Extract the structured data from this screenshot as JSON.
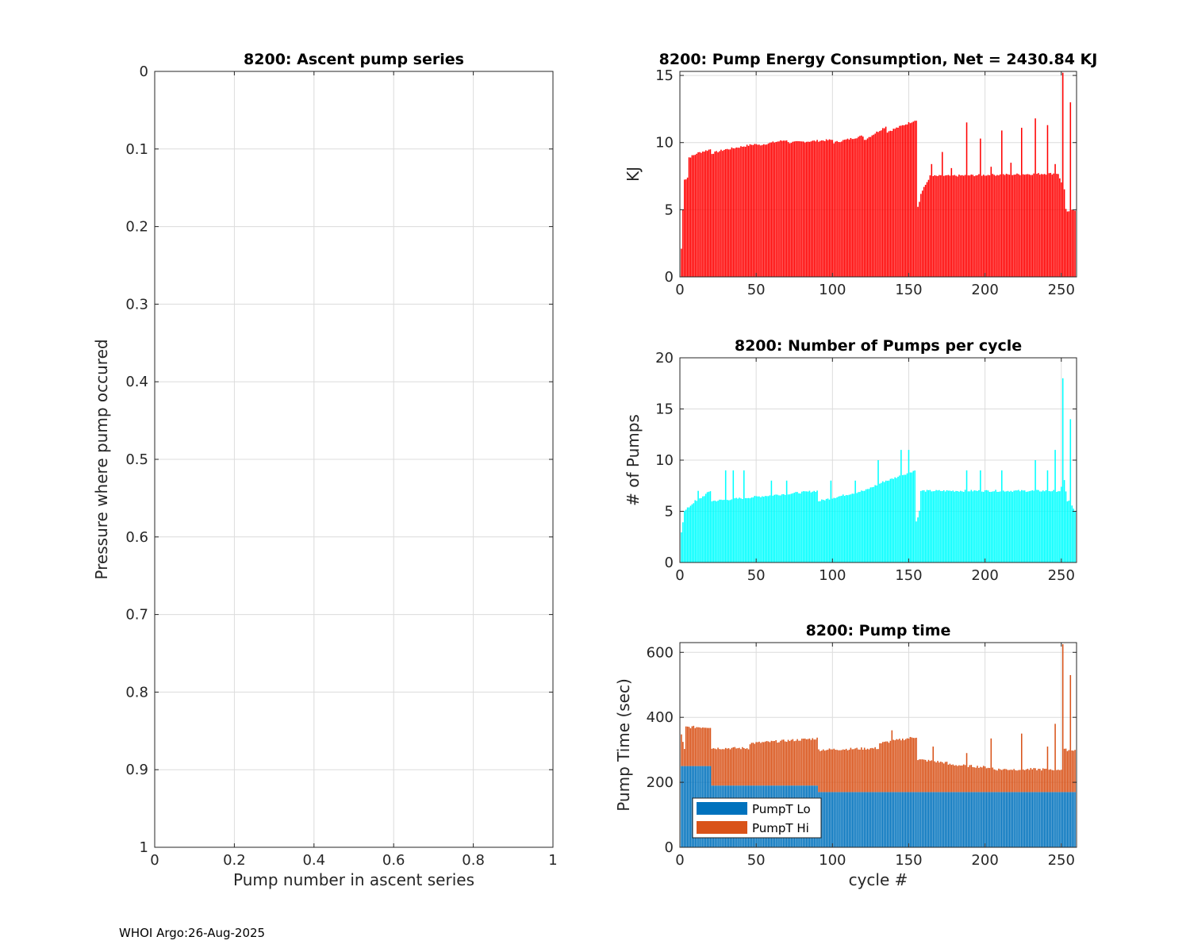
{
  "footer": "WHOI Argo:26-Aug-2025",
  "colors": {
    "energy": "#ff0000",
    "pumps": "#00ffff",
    "lo": "#0072bd",
    "hi": "#d95319",
    "grid": "#dcdcdc",
    "axis": "#262626"
  },
  "chart_data": [
    {
      "type": "scatter",
      "title": "8200: Ascent pump series",
      "xlabel": "Pump number in ascent series",
      "ylabel": "Pressure where pump occured",
      "xlim": [
        0,
        1
      ],
      "ylim": [
        0,
        1
      ],
      "y_reversed": true,
      "xticks": [
        "0",
        "0.2",
        "0.4",
        "0.6",
        "0.8",
        "1"
      ],
      "yticks": [
        "0",
        "0.1",
        "0.2",
        "0.3",
        "0.4",
        "0.5",
        "0.6",
        "0.7",
        "0.8",
        "0.9",
        "1"
      ],
      "points": []
    },
    {
      "type": "bar",
      "title": "8200: Pump Energy Consumption,  Net = 2430.84 KJ",
      "xlabel": "",
      "ylabel": "KJ",
      "xlim": [
        0,
        260
      ],
      "ylim": [
        0,
        15.3
      ],
      "xticks": [
        "0",
        "50",
        "100",
        "150",
        "200",
        "250"
      ],
      "yticks": [
        "0",
        "5",
        "10",
        "15"
      ],
      "segments": [
        {
          "from": 1,
          "to": 1,
          "start": 2.1,
          "end": 2.1
        },
        {
          "from": 2,
          "to": 3,
          "start": 5.0,
          "end": 7.3
        },
        {
          "from": 4,
          "to": 5,
          "start": 7.3,
          "end": 7.4
        },
        {
          "from": 6,
          "to": 10,
          "start": 8.9,
          "end": 9.1
        },
        {
          "from": 11,
          "to": 20,
          "start": 9.2,
          "end": 9.5
        },
        {
          "from": 21,
          "to": 30,
          "start": 9.2,
          "end": 9.5
        },
        {
          "from": 31,
          "to": 50,
          "start": 9.5,
          "end": 9.9
        },
        {
          "from": 51,
          "to": 70,
          "start": 9.8,
          "end": 10.2
        },
        {
          "from": 71,
          "to": 100,
          "start": 10.0,
          "end": 10.2
        },
        {
          "from": 101,
          "to": 120,
          "start": 10.0,
          "end": 10.5
        },
        {
          "from": 121,
          "to": 135,
          "start": 10.2,
          "end": 11.2
        },
        {
          "from": 136,
          "to": 155,
          "start": 10.8,
          "end": 11.7
        },
        {
          "from": 156,
          "to": 157,
          "start": 5.2,
          "end": 5.6
        },
        {
          "from": 158,
          "to": 164,
          "start": 6.2,
          "end": 7.5
        },
        {
          "from": 165,
          "to": 248,
          "start": 7.5,
          "end": 7.7
        },
        {
          "from": 249,
          "to": 252,
          "start": 7.3,
          "end": 6.5
        },
        {
          "from": 253,
          "to": 254,
          "start": 5.0,
          "end": 4.8
        },
        {
          "from": 255,
          "to": 259,
          "start": 4.9,
          "end": 5.0
        }
      ],
      "spikes": [
        {
          "x": 165,
          "value": 8.4
        },
        {
          "x": 172,
          "value": 9.3
        },
        {
          "x": 178,
          "value": 8.1
        },
        {
          "x": 188,
          "value": 11.5
        },
        {
          "x": 197,
          "value": 10.3
        },
        {
          "x": 204,
          "value": 8.2
        },
        {
          "x": 211,
          "value": 10.9
        },
        {
          "x": 217,
          "value": 8.5
        },
        {
          "x": 224,
          "value": 11.1
        },
        {
          "x": 233,
          "value": 11.8
        },
        {
          "x": 241,
          "value": 11.3
        },
        {
          "x": 246,
          "value": 8.4
        },
        {
          "x": 251,
          "value": 15.2
        },
        {
          "x": 256,
          "value": 13.0
        }
      ]
    },
    {
      "type": "bar",
      "title": "8200: Number of Pumps per cycle",
      "xlabel": "",
      "ylabel": "# of Pumps",
      "xlim": [
        0,
        260
      ],
      "ylim": [
        0,
        20
      ],
      "xticks": [
        "0",
        "50",
        "100",
        "150",
        "200",
        "250"
      ],
      "yticks": [
        "0",
        "5",
        "10",
        "15",
        "20"
      ],
      "segments": [
        {
          "from": 1,
          "to": 2,
          "start": 3,
          "end": 4
        },
        {
          "from": 3,
          "to": 10,
          "start": 5,
          "end": 6
        },
        {
          "from": 11,
          "to": 20,
          "start": 6,
          "end": 7
        },
        {
          "from": 21,
          "to": 90,
          "start": 6,
          "end": 7
        },
        {
          "from": 91,
          "to": 120,
          "start": 6,
          "end": 7
        },
        {
          "from": 121,
          "to": 135,
          "start": 7,
          "end": 8
        },
        {
          "from": 136,
          "to": 154,
          "start": 8,
          "end": 9
        },
        {
          "from": 155,
          "to": 157,
          "start": 4,
          "end": 5
        },
        {
          "from": 158,
          "to": 248,
          "start": 7,
          "end": 7
        },
        {
          "from": 249,
          "to": 252,
          "start": 7,
          "end": 8
        },
        {
          "from": 253,
          "to": 254,
          "start": 7,
          "end": 6
        },
        {
          "from": 255,
          "to": 259,
          "start": 6,
          "end": 5
        }
      ],
      "spikes": [
        {
          "x": 12,
          "value": 7
        },
        {
          "x": 30,
          "value": 9
        },
        {
          "x": 35,
          "value": 9
        },
        {
          "x": 42,
          "value": 9
        },
        {
          "x": 60,
          "value": 8
        },
        {
          "x": 70,
          "value": 8
        },
        {
          "x": 99,
          "value": 8
        },
        {
          "x": 115,
          "value": 8
        },
        {
          "x": 130,
          "value": 10
        },
        {
          "x": 145,
          "value": 11
        },
        {
          "x": 150,
          "value": 11
        },
        {
          "x": 188,
          "value": 9
        },
        {
          "x": 197,
          "value": 9
        },
        {
          "x": 211,
          "value": 9
        },
        {
          "x": 233,
          "value": 10
        },
        {
          "x": 241,
          "value": 9
        },
        {
          "x": 246,
          "value": 11
        },
        {
          "x": 251,
          "value": 18
        },
        {
          "x": 256,
          "value": 14
        }
      ]
    },
    {
      "type": "bar",
      "stacked": true,
      "title": "8200: Pump time",
      "xlabel": "cycle #",
      "ylabel": "Pump Time (sec)",
      "xlim": [
        0,
        260
      ],
      "ylim": [
        0,
        630
      ],
      "xticks": [
        "0",
        "50",
        "100",
        "150",
        "200",
        "250"
      ],
      "yticks": [
        "0",
        "200",
        "400",
        "600"
      ],
      "legend": {
        "position": "bottom-left",
        "entries": [
          "PumpT Lo",
          "PumpT Hi"
        ]
      },
      "series_lo": [
        {
          "from": 1,
          "to": 20,
          "value": 250
        },
        {
          "from": 21,
          "to": 90,
          "value": 190
        },
        {
          "from": 91,
          "to": 259,
          "value": 170
        }
      ],
      "series_total": [
        {
          "from": 1,
          "to": 3,
          "start": 345,
          "end": 300
        },
        {
          "from": 4,
          "to": 20,
          "start": 370,
          "end": 370
        },
        {
          "from": 21,
          "to": 45,
          "start": 305,
          "end": 305
        },
        {
          "from": 46,
          "to": 90,
          "start": 320,
          "end": 335
        },
        {
          "from": 91,
          "to": 130,
          "start": 300,
          "end": 305
        },
        {
          "from": 131,
          "to": 155,
          "start": 320,
          "end": 340
        },
        {
          "from": 156,
          "to": 175,
          "start": 270,
          "end": 260
        },
        {
          "from": 176,
          "to": 205,
          "start": 255,
          "end": 245
        },
        {
          "from": 206,
          "to": 250,
          "start": 240,
          "end": 240
        },
        {
          "from": 251,
          "to": 259,
          "start": 300,
          "end": 300
        }
      ],
      "spikes": [
        {
          "x": 139,
          "value": 360
        },
        {
          "x": 166,
          "value": 310
        },
        {
          "x": 188,
          "value": 290
        },
        {
          "x": 204,
          "value": 335
        },
        {
          "x": 224,
          "value": 350
        },
        {
          "x": 241,
          "value": 310
        },
        {
          "x": 246,
          "value": 380
        },
        {
          "x": 251,
          "value": 625
        },
        {
          "x": 256,
          "value": 530
        }
      ]
    }
  ]
}
